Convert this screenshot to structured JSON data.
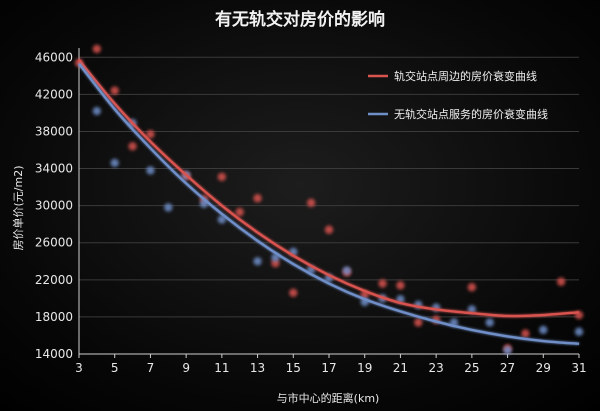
{
  "chart_data": {
    "type": "scatter",
    "title": "有无轨交对房价的影响",
    "xlabel": "与市中心的距离(km)",
    "ylabel": "房价单价(元/m2)",
    "xlim": [
      3,
      31
    ],
    "ylim": [
      14000,
      47000
    ],
    "x_ticks": [
      3,
      5,
      7,
      9,
      11,
      13,
      15,
      17,
      19,
      21,
      23,
      25,
      27,
      29,
      31
    ],
    "y_ticks": [
      14000,
      18000,
      22000,
      26000,
      30000,
      34000,
      38000,
      42000,
      46000
    ],
    "grid": true,
    "legend_position": "top-right",
    "series": [
      {
        "name": "轨交站点周边的房价衰变曲线",
        "color": "#d9534f",
        "points": [
          [
            3,
            45400
          ],
          [
            4,
            46900
          ],
          [
            5,
            42400
          ],
          [
            6,
            36400
          ],
          [
            7,
            37700
          ],
          [
            9,
            33200
          ],
          [
            10,
            30700
          ],
          [
            11,
            33100
          ],
          [
            12,
            29300
          ],
          [
            13,
            30800
          ],
          [
            14,
            23800
          ],
          [
            15,
            20600
          ],
          [
            16,
            30300
          ],
          [
            17,
            27400
          ],
          [
            18,
            22800
          ],
          [
            19,
            20400
          ],
          [
            20,
            21600
          ],
          [
            21,
            21400
          ],
          [
            22,
            17400
          ],
          [
            23,
            17700
          ],
          [
            25,
            21200
          ],
          [
            27,
            14600
          ],
          [
            28,
            16200
          ],
          [
            30,
            21800
          ],
          [
            31,
            18200
          ]
        ],
        "trend": [
          [
            3,
            45700
          ],
          [
            5,
            41000
          ],
          [
            7,
            36900
          ],
          [
            9,
            33300
          ],
          [
            11,
            30000
          ],
          [
            13,
            27100
          ],
          [
            15,
            24600
          ],
          [
            17,
            22500
          ],
          [
            19,
            20800
          ],
          [
            21,
            19500
          ],
          [
            23,
            18800
          ],
          [
            25,
            18400
          ],
          [
            27,
            18100
          ],
          [
            29,
            18200
          ],
          [
            31,
            18500
          ]
        ]
      },
      {
        "name": "无轨交站点服务的房价衰变曲线",
        "color": "#6f8fc9",
        "points": [
          [
            4,
            40200
          ],
          [
            5,
            34600
          ],
          [
            6,
            38900
          ],
          [
            7,
            33800
          ],
          [
            8,
            29800
          ],
          [
            9,
            33300
          ],
          [
            10,
            30200
          ],
          [
            11,
            28500
          ],
          [
            13,
            24000
          ],
          [
            14,
            24400
          ],
          [
            15,
            25000
          ],
          [
            16,
            23100
          ],
          [
            17,
            22200
          ],
          [
            18,
            23000
          ],
          [
            19,
            19600
          ],
          [
            20,
            20000
          ],
          [
            21,
            19900
          ],
          [
            22,
            19300
          ],
          [
            23,
            19000
          ],
          [
            24,
            17400
          ],
          [
            25,
            18800
          ],
          [
            26,
            17400
          ],
          [
            27,
            14400
          ],
          [
            29,
            16600
          ],
          [
            31,
            16400
          ]
        ],
        "trend": [
          [
            3,
            45300
          ],
          [
            5,
            40400
          ],
          [
            7,
            36200
          ],
          [
            9,
            32400
          ],
          [
            11,
            29100
          ],
          [
            13,
            26200
          ],
          [
            15,
            23700
          ],
          [
            17,
            21600
          ],
          [
            19,
            19900
          ],
          [
            21,
            18600
          ],
          [
            23,
            17500
          ],
          [
            25,
            16600
          ],
          [
            27,
            15900
          ],
          [
            29,
            15400
          ],
          [
            31,
            15100
          ]
        ]
      }
    ]
  }
}
